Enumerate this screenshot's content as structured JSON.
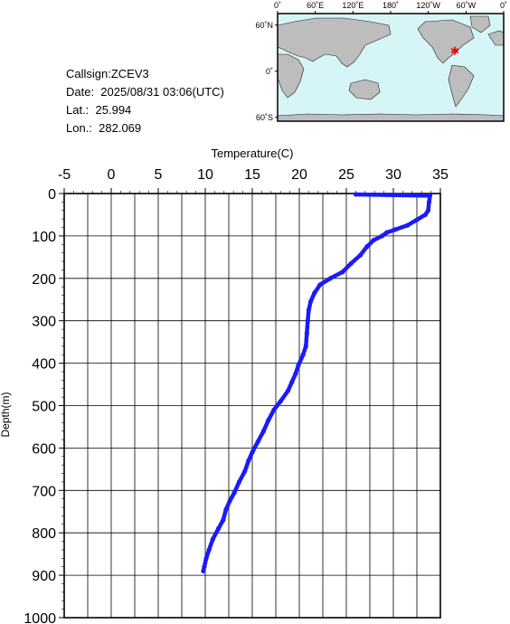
{
  "info": {
    "callsign": "Callsign:ZCEV3",
    "date": "Date:  2025/08/31 03:06(UTC)",
    "lat": "Lat.:  25.994",
    "lon": "Lon.:  282.069"
  },
  "map": {
    "lon_ticks": [
      "0˚",
      "60˚E",
      "120˚E",
      "180˚",
      "120˚W",
      "60˚W",
      "0˚"
    ],
    "lat_ticks": [
      "60˚N",
      "0˚",
      "60˚S"
    ],
    "marker": {
      "lat": 25.994,
      "lon": 282.069
    },
    "colors": {
      "ocean": "#d6f5f7",
      "land": "#bdbdbd",
      "marker": "#ff0000"
    }
  },
  "chart_data": {
    "type": "line",
    "xlabel": "Temperature(C)",
    "ylabel": "Depth(m)",
    "xlim": [
      -5,
      35
    ],
    "ylim": [
      0,
      1000
    ],
    "y_inverted": true,
    "x_ticks": [
      "-5",
      "0",
      "5",
      "10",
      "15",
      "20",
      "25",
      "30",
      "35"
    ],
    "y_ticks": [
      "0",
      "100",
      "200",
      "300",
      "400",
      "500",
      "600",
      "700",
      "800",
      "900",
      "1000"
    ],
    "grid": true,
    "series_color": "#1a1aff",
    "series": [
      {
        "x": [
          26.0,
          33.9,
          33.8,
          33.7,
          33.4,
          32.5,
          31.5,
          30.2,
          29.3,
          28.8,
          27.9,
          27.2,
          26.5,
          25.5,
          24.6,
          23.3,
          22.2,
          21.6,
          21.2,
          21.0,
          20.9,
          20.8,
          20.7,
          20.4,
          19.9,
          19.6,
          19.2,
          18.8,
          18.0,
          17.3,
          16.7,
          16.2,
          15.6,
          15.0,
          14.6,
          14.2,
          13.6,
          13.1,
          12.6,
          12.2,
          11.9,
          11.4,
          10.8,
          10.4,
          10.1,
          9.9,
          9.8
        ],
        "y": [
          2,
          5,
          20,
          40,
          50,
          62,
          75,
          85,
          92,
          100,
          110,
          125,
          145,
          165,
          185,
          200,
          215,
          235,
          255,
          275,
          300,
          330,
          360,
          380,
          405,
          425,
          445,
          465,
          490,
          510,
          535,
          560,
          585,
          610,
          630,
          655,
          680,
          705,
          725,
          745,
          770,
          790,
          815,
          840,
          860,
          880,
          890
        ]
      }
    ]
  }
}
